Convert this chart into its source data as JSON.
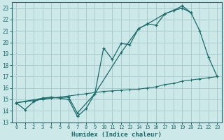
{
  "xlabel": "Humidex (Indice chaleur)",
  "bg_color": "#cce8e8",
  "grid_color": "#aacccc",
  "line_color": "#1a6b6b",
  "xlim": [
    -0.5,
    23.5
  ],
  "ylim": [
    13,
    23.5
  ],
  "yticks": [
    13,
    14,
    15,
    16,
    17,
    18,
    19,
    20,
    21,
    22,
    23
  ],
  "xticks": [
    0,
    1,
    2,
    3,
    4,
    5,
    6,
    7,
    8,
    9,
    10,
    11,
    12,
    13,
    14,
    15,
    16,
    17,
    18,
    19,
    20,
    21,
    22,
    23
  ],
  "line1_x": [
    0,
    1,
    2,
    3,
    4,
    5,
    6,
    7,
    8,
    9,
    10,
    11,
    12,
    13,
    14,
    15,
    16,
    17,
    18,
    19,
    20
  ],
  "line1_y": [
    14.7,
    14.1,
    14.8,
    15.1,
    15.2,
    15.1,
    15.0,
    13.5,
    14.2,
    15.5,
    19.5,
    18.5,
    19.9,
    19.8,
    21.2,
    21.6,
    21.5,
    22.5,
    22.8,
    23.2,
    22.6
  ],
  "line2_x": [
    0,
    3,
    6,
    7,
    9,
    12,
    14,
    15,
    17,
    18,
    19,
    20,
    21,
    22,
    23
  ],
  "line2_y": [
    14.7,
    15.1,
    15.2,
    13.8,
    15.5,
    19.1,
    21.2,
    21.6,
    22.5,
    22.8,
    23.0,
    22.6,
    21.0,
    18.7,
    17.0
  ],
  "line3_x": [
    0,
    1,
    2,
    3,
    4,
    5,
    6,
    7,
    8,
    9,
    10,
    11,
    12,
    13,
    14,
    15,
    16,
    17,
    18,
    19,
    20,
    21,
    22,
    23
  ],
  "line3_y": [
    14.7,
    14.8,
    14.9,
    15.0,
    15.1,
    15.2,
    15.3,
    15.4,
    15.5,
    15.6,
    15.7,
    15.75,
    15.8,
    15.85,
    15.9,
    16.0,
    16.1,
    16.3,
    16.4,
    16.6,
    16.7,
    16.8,
    16.9,
    17.0
  ]
}
